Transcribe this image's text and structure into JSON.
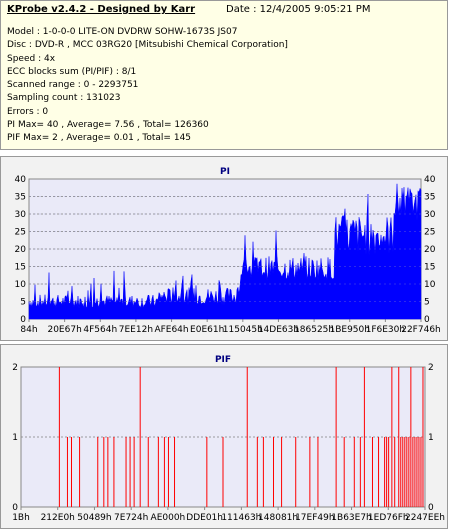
{
  "info": {
    "title": "KProbe v2.4.2 - Designed by Karr",
    "date": "Date : 12/4/2005 9:05:21 PM",
    "lines": [
      "Model : 1-0-0-0 LITE-ON DVDRW SOHW-1673S JS07",
      "Disc : DVD-R , MCC 03RG20  [Mitsubishi Chemical Corporation]",
      "Speed : 4x",
      "ECC blocks sum (PI/PIF) : 8/1",
      "Scanned range : 0 - 2293751",
      "Sampling count : 131023",
      "Errors : 0",
      "PI Max= 40 , Average= 7.56 , Total= 126360",
      "PIF Max= 2 , Average= 0.01 , Total= 145"
    ]
  },
  "chart_data": [
    {
      "type": "area",
      "title": "PI",
      "ylim": [
        0,
        40
      ],
      "yticks": [
        0,
        5,
        10,
        15,
        20,
        25,
        30,
        35,
        40
      ],
      "xticks": [
        "84h",
        "20E67h",
        "4F564h",
        "7EE12h",
        "AFE64h",
        "E0E61h",
        "115045h",
        "14DE63h",
        "186525h",
        "1BE950h",
        "1F6E30h",
        "22F746h"
      ],
      "grid": true,
      "colors": {
        "fill": "#0000ff",
        "plot_bg": "#eaeaf8",
        "grid": "#808080"
      },
      "segments": [
        {
          "x_start": 0.0,
          "x_end": 0.33,
          "base": [
            3,
            7
          ],
          "spike_max": 14
        },
        {
          "x_start": 0.33,
          "x_end": 0.53,
          "base": [
            4,
            9
          ],
          "spike_max": 16
        },
        {
          "x_start": 0.53,
          "x_end": 0.54,
          "base": [
            7,
            11
          ],
          "spike_max": 12
        },
        {
          "x_start": 0.54,
          "x_end": 0.78,
          "base": [
            11,
            18
          ],
          "spike_max": 28
        },
        {
          "x_start": 0.78,
          "x_end": 0.93,
          "base": [
            18,
            30
          ],
          "spike_max": 40
        },
        {
          "x_start": 0.93,
          "x_end": 1.0,
          "base": [
            28,
            38
          ],
          "spike_max": 40
        }
      ]
    },
    {
      "type": "bar",
      "title": "PIF",
      "ylim": [
        0,
        2
      ],
      "yticks": [
        0,
        1,
        2
      ],
      "xticks": [
        "1Bh",
        "212E0h",
        "50489h",
        "7E724h",
        "AE000h",
        "DDE01h",
        "111463h",
        "148081h",
        "17EF49h",
        "1B63E7h",
        "1ED76Fh",
        "2247EEh"
      ],
      "grid": true,
      "colors": {
        "bar": "#ff0000",
        "plot_bg": "#eaeaf8",
        "grid": "#808080"
      },
      "x_fraction_values": [
        [
          0.095,
          2
        ],
        [
          0.115,
          1
        ],
        [
          0.125,
          1
        ],
        [
          0.145,
          1
        ],
        [
          0.19,
          1
        ],
        [
          0.205,
          1
        ],
        [
          0.215,
          1
        ],
        [
          0.23,
          1
        ],
        [
          0.26,
          1
        ],
        [
          0.27,
          1
        ],
        [
          0.28,
          1
        ],
        [
          0.295,
          2
        ],
        [
          0.315,
          1
        ],
        [
          0.34,
          1
        ],
        [
          0.355,
          1
        ],
        [
          0.365,
          1
        ],
        [
          0.38,
          1
        ],
        [
          0.46,
          1
        ],
        [
          0.5,
          1
        ],
        [
          0.56,
          2
        ],
        [
          0.585,
          1
        ],
        [
          0.6,
          1
        ],
        [
          0.625,
          1
        ],
        [
          0.645,
          1
        ],
        [
          0.68,
          1
        ],
        [
          0.715,
          1
        ],
        [
          0.735,
          1
        ],
        [
          0.78,
          2
        ],
        [
          0.8,
          1
        ],
        [
          0.825,
          1
        ],
        [
          0.84,
          1
        ],
        [
          0.85,
          2
        ],
        [
          0.87,
          1
        ],
        [
          0.885,
          1
        ],
        [
          0.9,
          1
        ],
        [
          0.905,
          1
        ],
        [
          0.91,
          1
        ],
        [
          0.918,
          2
        ],
        [
          0.925,
          1
        ],
        [
          0.935,
          2
        ],
        [
          0.94,
          1
        ],
        [
          0.945,
          1
        ],
        [
          0.95,
          1
        ],
        [
          0.955,
          1
        ],
        [
          0.96,
          1
        ],
        [
          0.965,
          2
        ],
        [
          0.97,
          1
        ],
        [
          0.975,
          1
        ],
        [
          0.98,
          1
        ],
        [
          0.985,
          1
        ],
        [
          0.99,
          1
        ],
        [
          0.995,
          2
        ]
      ]
    }
  ]
}
